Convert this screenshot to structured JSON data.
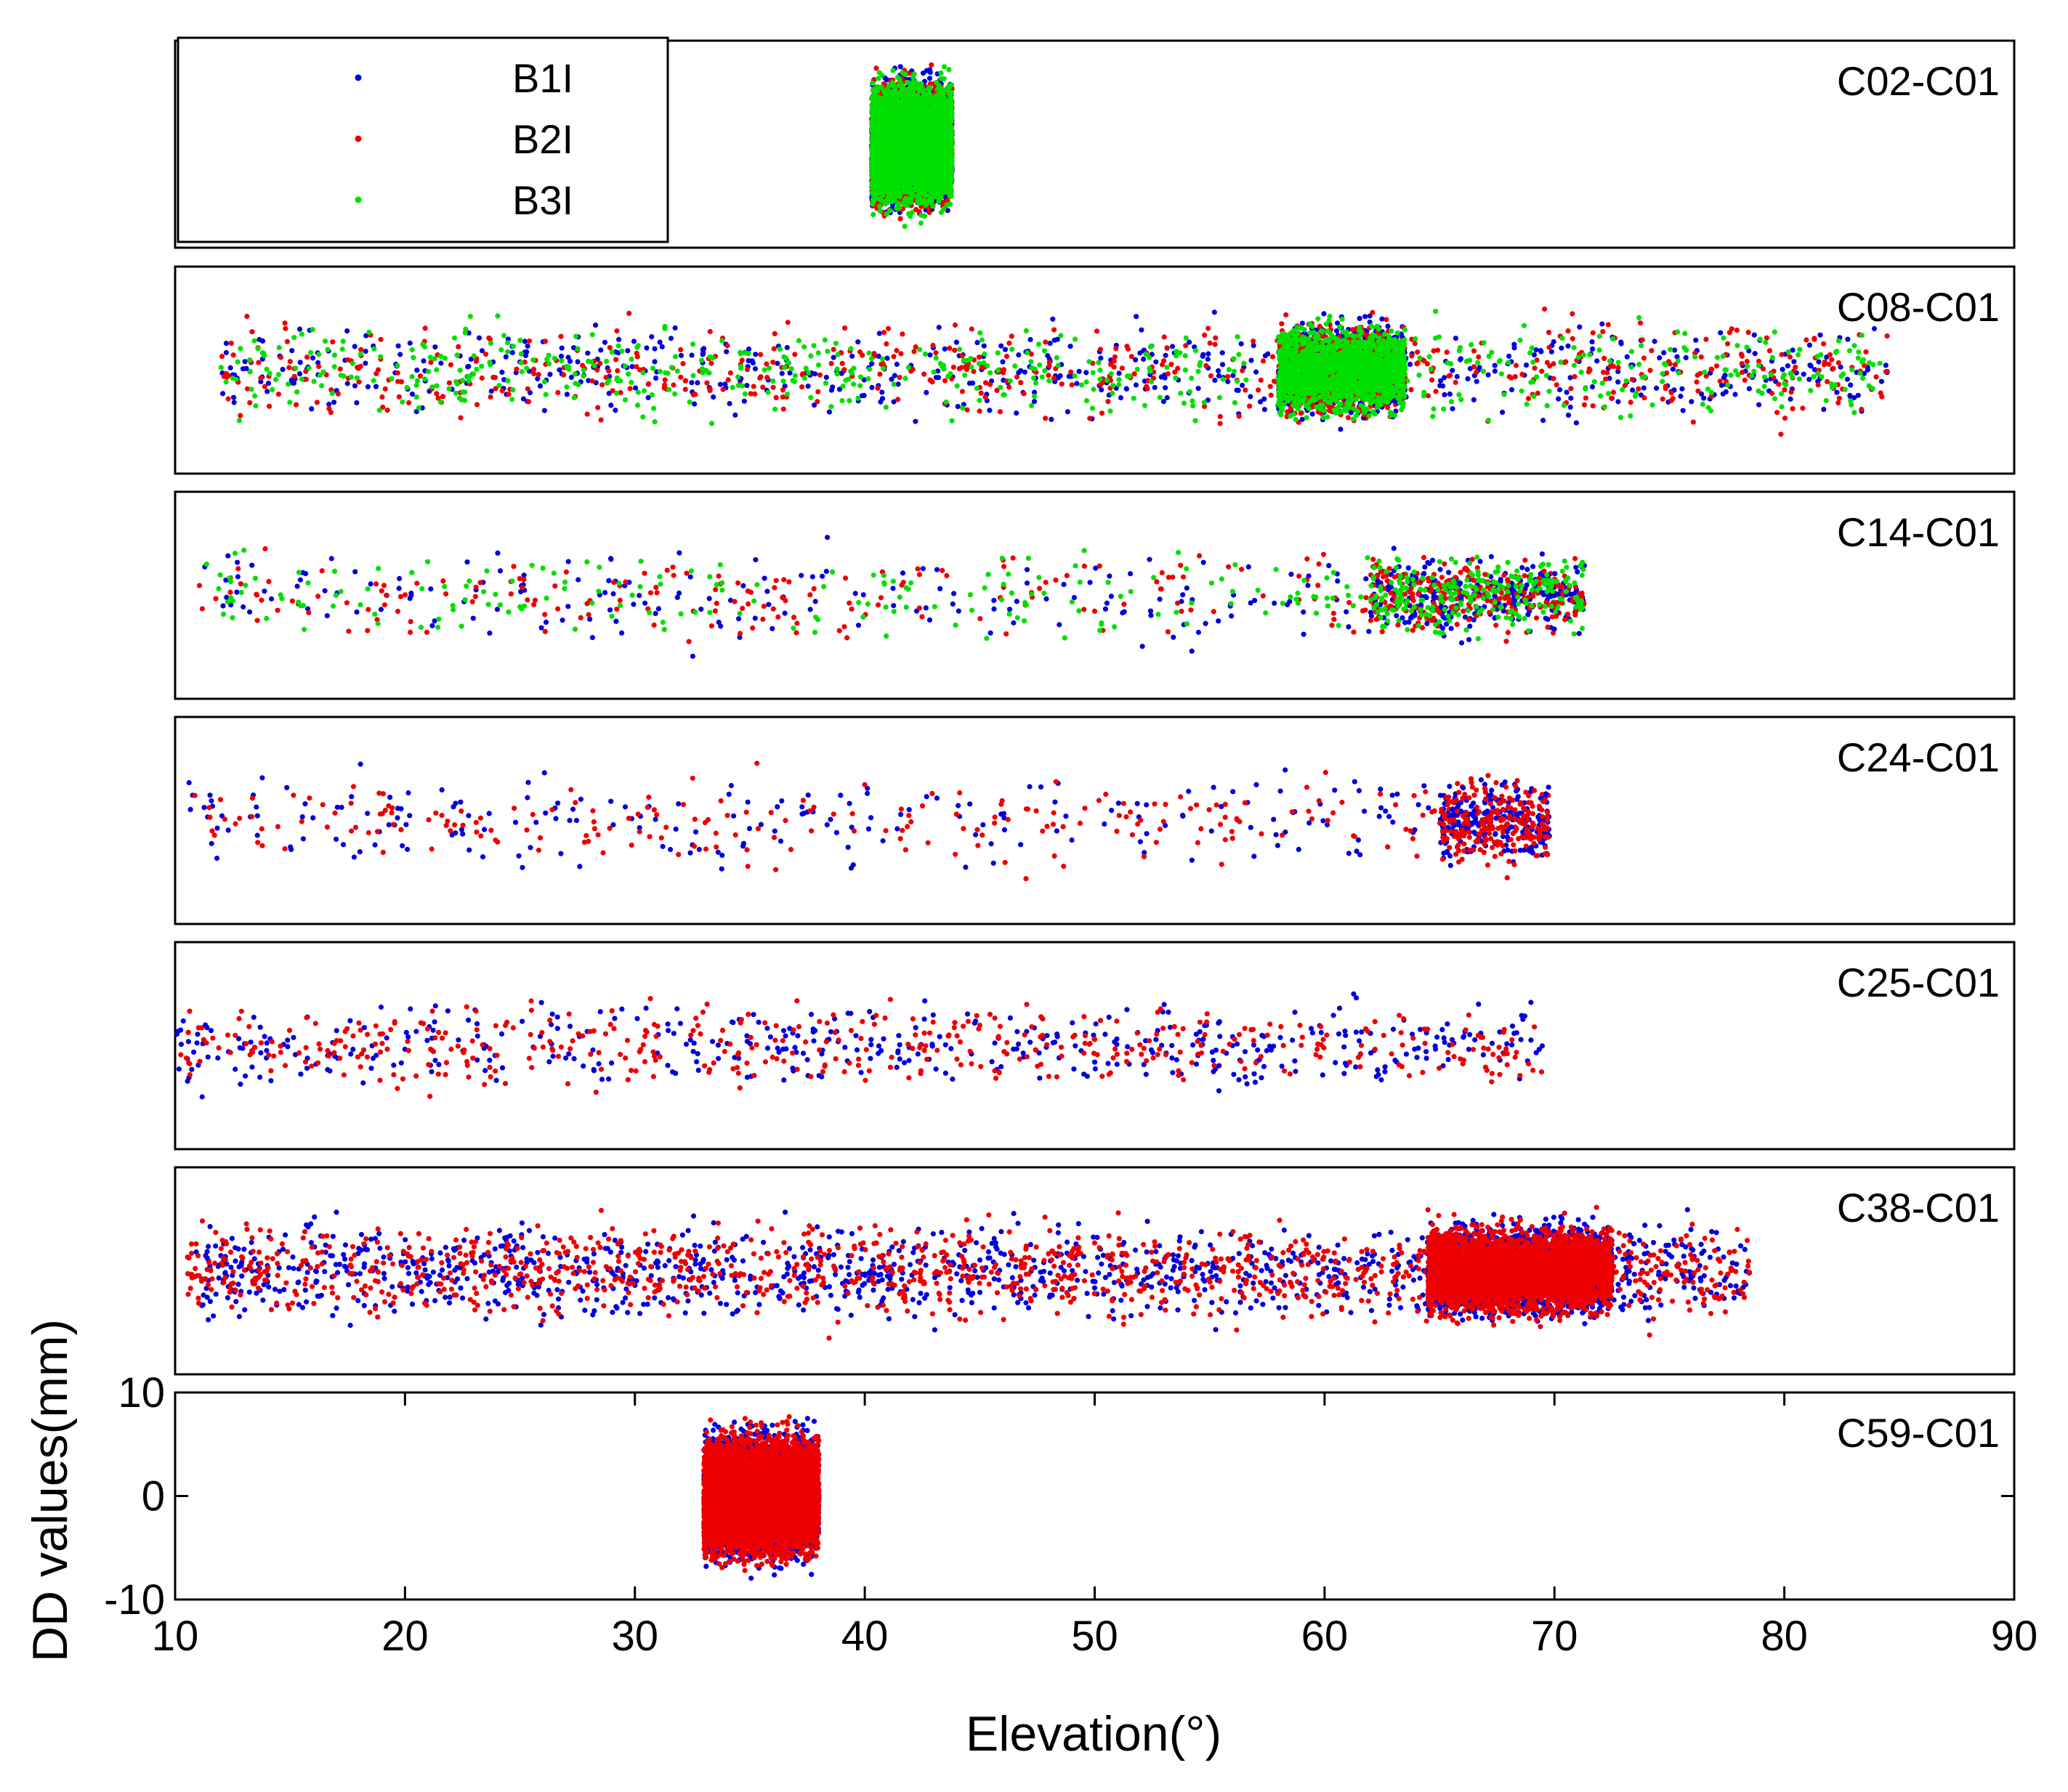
{
  "chart_data": {
    "type": "scatter",
    "xlabel": "Elevation(°)",
    "ylabel": "DD values(mm)",
    "xlim": [
      10,
      90
    ],
    "ylim": [
      -10,
      10
    ],
    "x_ticks": [
      10,
      20,
      30,
      40,
      50,
      60,
      70,
      80,
      90
    ],
    "x_tick_labels": [
      "10",
      "20",
      "30",
      "40",
      "50",
      "60",
      "70",
      "80",
      "90"
    ],
    "y_ticks": [
      -10,
      0,
      10
    ],
    "y_tick_labels": [
      "-10",
      "0",
      "10"
    ],
    "legend": [
      {
        "name": "B1I",
        "color": "#0000dd"
      },
      {
        "name": "B2I",
        "color": "#ee0000"
      },
      {
        "name": "B3I",
        "color": "#00e000"
      }
    ],
    "legend_position": "top-left of first panel",
    "panels": [
      {
        "label": "C02-C01",
        "series": [
          "B1I",
          "B2I",
          "B3I"
        ],
        "segments": [
          {
            "x_start": 40.3,
            "x_end": 43.8,
            "density": 9000,
            "spread": 5.5,
            "top": "B3I"
          }
        ]
      },
      {
        "label": "C08-C01",
        "series": [
          "B1I",
          "B2I",
          "B3I"
        ],
        "segments": [
          {
            "x_start": 12.0,
            "x_end": 84.5,
            "density": 1800,
            "spread": 4.5
          },
          {
            "x_start": 58.0,
            "x_end": 63.5,
            "density": 3500,
            "spread": 4.0,
            "top": "B3I"
          }
        ]
      },
      {
        "label": "C14-C01",
        "series": [
          "B1I",
          "B2I",
          "B3I"
        ],
        "segments": [
          {
            "x_start": 11.0,
            "x_end": 71.3,
            "density": 650,
            "spread": 4.5
          },
          {
            "x_start": 62.0,
            "x_end": 71.3,
            "density": 700,
            "spread": 3.5
          }
        ]
      },
      {
        "label": "C24-C01",
        "series": [
          "B1I",
          "B2I"
        ],
        "segments": [
          {
            "x_start": 10.5,
            "x_end": 69.8,
            "density": 450,
            "spread": 4.5
          },
          {
            "x_start": 65.0,
            "x_end": 69.8,
            "density": 450,
            "spread": 4.0
          }
        ]
      },
      {
        "label": "C25-C01",
        "series": [
          "B1I",
          "B2I"
        ],
        "segments": [
          {
            "x_start": 10.0,
            "x_end": 69.5,
            "density": 900,
            "spread": 4.0
          }
        ]
      },
      {
        "label": "C38-C01",
        "series": [
          "B1I",
          "B2I"
        ],
        "segments": [
          {
            "x_start": 10.5,
            "x_end": 78.5,
            "density": 2400,
            "spread": 4.5
          },
          {
            "x_start": 64.5,
            "x_end": 72.5,
            "density": 5000,
            "spread": 4.0,
            "top": "B2I"
          }
        ]
      },
      {
        "label": "C59-C01",
        "series": [
          "B1I",
          "B2I"
        ],
        "segments": [
          {
            "x_start": 33.0,
            "x_end": 38.0,
            "density": 9000,
            "spread": 5.5,
            "top": "B2I"
          }
        ]
      }
    ]
  }
}
